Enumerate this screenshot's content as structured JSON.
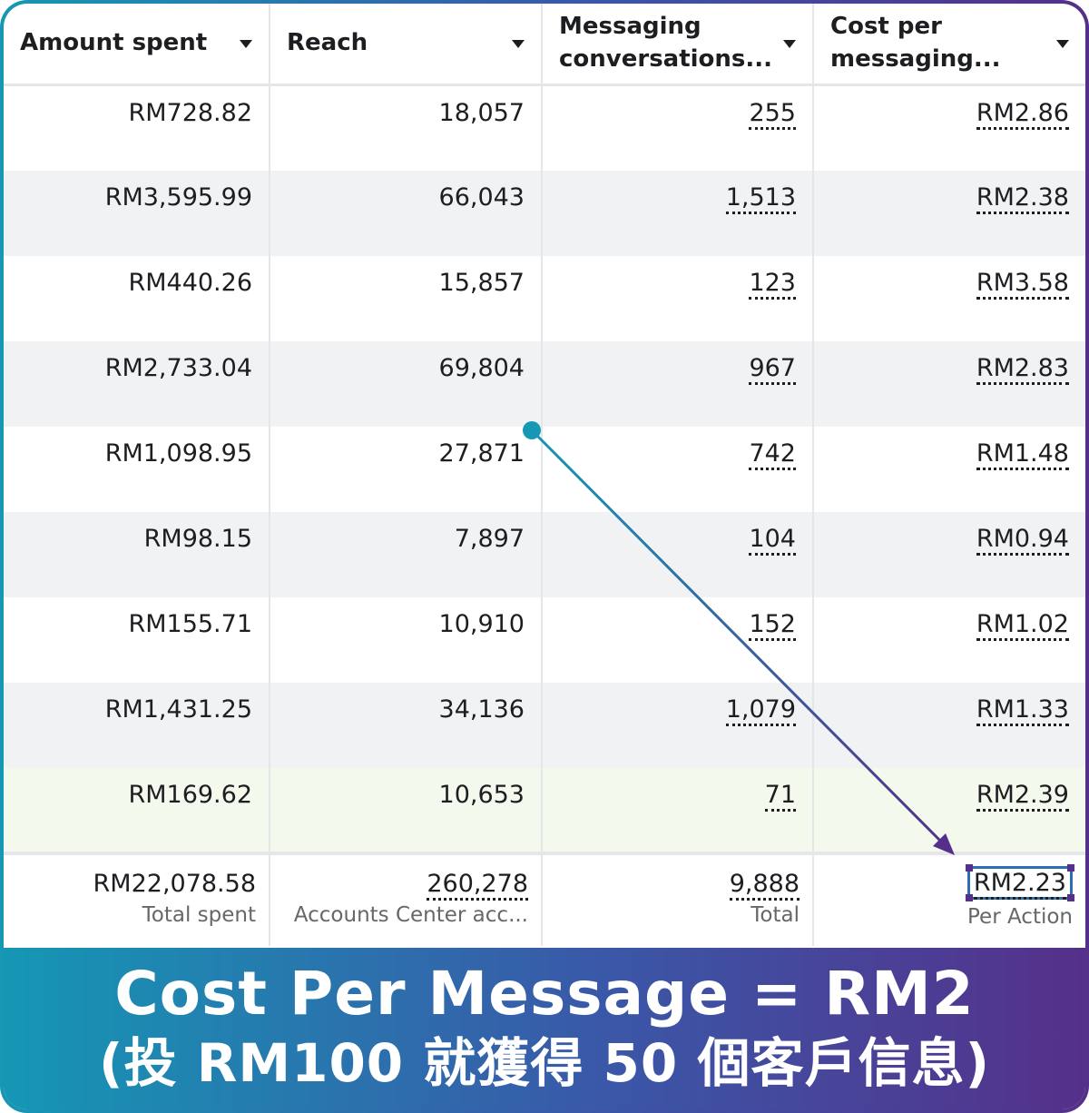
{
  "columns": [
    {
      "label": "Amount spent"
    },
    {
      "label": "Reach"
    },
    {
      "label": "Messaging conversations..."
    },
    {
      "label": "Cost per messaging..."
    }
  ],
  "rows": [
    {
      "amount": "RM728.82",
      "reach": "18,057",
      "conversations": "255",
      "cost": "RM2.86"
    },
    {
      "amount": "RM3,595.99",
      "reach": "66,043",
      "conversations": "1,513",
      "cost": "RM2.38"
    },
    {
      "amount": "RM440.26",
      "reach": "15,857",
      "conversations": "123",
      "cost": "RM3.58"
    },
    {
      "amount": "RM2,733.04",
      "reach": "69,804",
      "conversations": "967",
      "cost": "RM2.83"
    },
    {
      "amount": "RM1,098.95",
      "reach": "27,871",
      "conversations": "742",
      "cost": "RM1.48"
    },
    {
      "amount": "RM98.15",
      "reach": "7,897",
      "conversations": "104",
      "cost": "RM0.94"
    },
    {
      "amount": "RM155.71",
      "reach": "10,910",
      "conversations": "152",
      "cost": "RM1.02"
    },
    {
      "amount": "RM1,431.25",
      "reach": "34,136",
      "conversations": "1,079",
      "cost": "RM1.33"
    },
    {
      "amount": "RM169.62",
      "reach": "10,653",
      "conversations": "71",
      "cost": "RM2.39"
    }
  ],
  "totals": {
    "amount": "RM22,078.58",
    "amount_sub": "Total spent",
    "reach": "260,278",
    "reach_sub": "Accounts Center acc...",
    "conversations": "9,888",
    "conversations_sub": "Total",
    "cost": "RM2.23",
    "cost_sub": "Per Action"
  },
  "banner": {
    "line1": "Cost Per Message = RM2",
    "line2": "(投 RM100 就獲得 50 個客戶信息)"
  },
  "colors": {
    "arrow_start": "#1697b4",
    "arrow_end": "#54308a",
    "highlight_row": "#f3f9ec"
  }
}
